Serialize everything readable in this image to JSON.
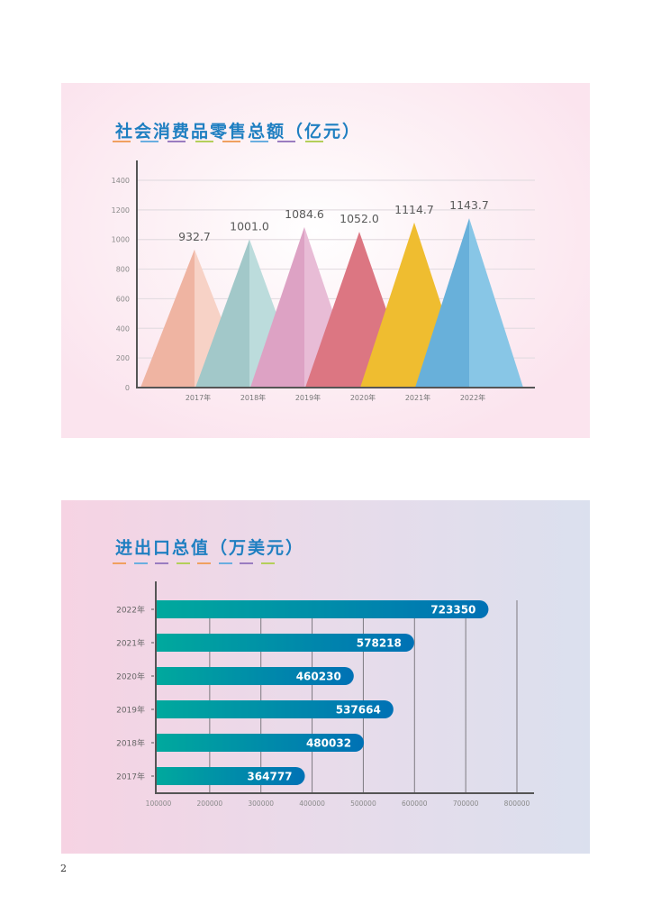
{
  "page": {
    "number": "2"
  },
  "dash_colors": [
    "#f0a060",
    "#6aaee0",
    "#9a7cc0",
    "#b4cf5a",
    "#f0a060",
    "#6aaee0",
    "#9a7cc0",
    "#b4cf5a"
  ],
  "chart_data": [
    {
      "type": "bar",
      "style": "triangle",
      "title": "社会消费品零售总额（亿元）",
      "categories": [
        "2017年",
        "2018年",
        "2019年",
        "2020年",
        "2021年",
        "2022年"
      ],
      "values": [
        932.7,
        1001.0,
        1084.6,
        1052.0,
        1114.7,
        1143.7
      ],
      "value_labels": [
        "932.7",
        "1001.0",
        "1084.6",
        "1052.0",
        "1114.7",
        "1143.7"
      ],
      "colors": [
        {
          "dark": "#efb4a2",
          "light": "#f7d2c6"
        },
        {
          "dark": "#a2c8c9",
          "light": "#bcdcdc"
        },
        {
          "dark": "#dda2c4",
          "light": "#e8bcd6"
        },
        {
          "dark": "#dc7682",
          "light": "#dc7682"
        },
        {
          "dark": "#efbd30",
          "light": "#efbd30"
        },
        {
          "dark": "#68b0da",
          "light": "#88c6e6"
        }
      ],
      "yticks": [
        "0",
        "200",
        "400",
        "600",
        "800",
        "1000",
        "1200",
        "1400"
      ],
      "ylim": [
        0,
        1400
      ],
      "xlabel": "",
      "ylabel": "",
      "grid": true,
      "legend": null
    },
    {
      "type": "bar",
      "orientation": "horizontal",
      "title": "进出口总值（万美元）",
      "categories": [
        "2022年",
        "2021年",
        "2020年",
        "2019年",
        "2018年",
        "2017年"
      ],
      "values": [
        723350,
        578218,
        460230,
        537664,
        480032,
        364777
      ],
      "value_labels": [
        "723350",
        "578218",
        "460230",
        "537664",
        "480032",
        "364777"
      ],
      "xticks": [
        "100000",
        "200000",
        "300000",
        "400000",
        "500000",
        "600000",
        "700000",
        "800000"
      ],
      "xlim": [
        100000,
        800000
      ],
      "bar_gradient": [
        "#00a99d",
        "#0071b5"
      ],
      "xlabel": "",
      "ylabel": "",
      "grid": true,
      "legend": null
    }
  ]
}
